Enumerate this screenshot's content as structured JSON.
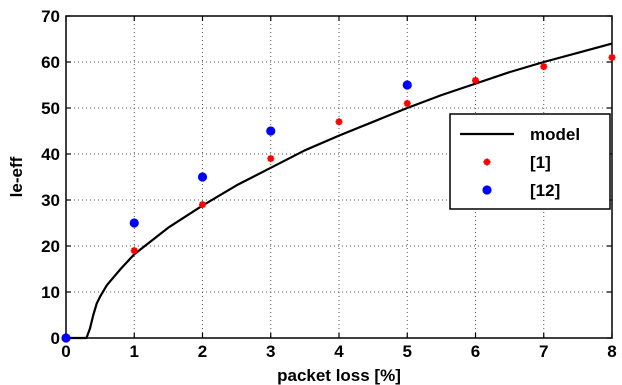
{
  "chart_data": {
    "type": "line",
    "title": "",
    "xlabel": "packet loss [%]",
    "ylabel": "le-eff",
    "xlim": [
      0,
      8
    ],
    "ylim": [
      0,
      70
    ],
    "xticks": [
      0,
      1,
      2,
      3,
      4,
      5,
      6,
      7,
      8
    ],
    "yticks": [
      0,
      10,
      20,
      30,
      40,
      50,
      60,
      70
    ],
    "grid": true,
    "legend_position": "right",
    "series": [
      {
        "name": "model",
        "style": "line",
        "color": "#000000",
        "x": [
          0,
          0.3,
          0.35,
          0.4,
          0.45,
          0.5,
          0.6,
          0.8,
          1,
          1.5,
          2,
          2.5,
          3,
          3.5,
          4,
          4.5,
          5,
          5.5,
          6,
          6.5,
          7,
          7.5,
          8
        ],
        "y": [
          0,
          0,
          2,
          5,
          7.5,
          9,
          11.5,
          15,
          18.2,
          24,
          28.8,
          33.2,
          37,
          40.8,
          44,
          47,
          50,
          52.8,
          55.3,
          57.8,
          60,
          62,
          64
        ]
      },
      {
        "name": "[1]",
        "style": "marker",
        "marker": "star",
        "color": "#ff0000",
        "x": [
          1,
          2,
          3,
          4,
          5,
          6,
          7,
          8
        ],
        "y": [
          19,
          29,
          39,
          47,
          51,
          56,
          59,
          61
        ]
      },
      {
        "name": "[12]",
        "style": "marker",
        "marker": "circle",
        "color": "#0000ff",
        "x": [
          0,
          1,
          2,
          3,
          5
        ],
        "y": [
          0,
          25,
          35,
          45,
          55
        ]
      }
    ]
  }
}
